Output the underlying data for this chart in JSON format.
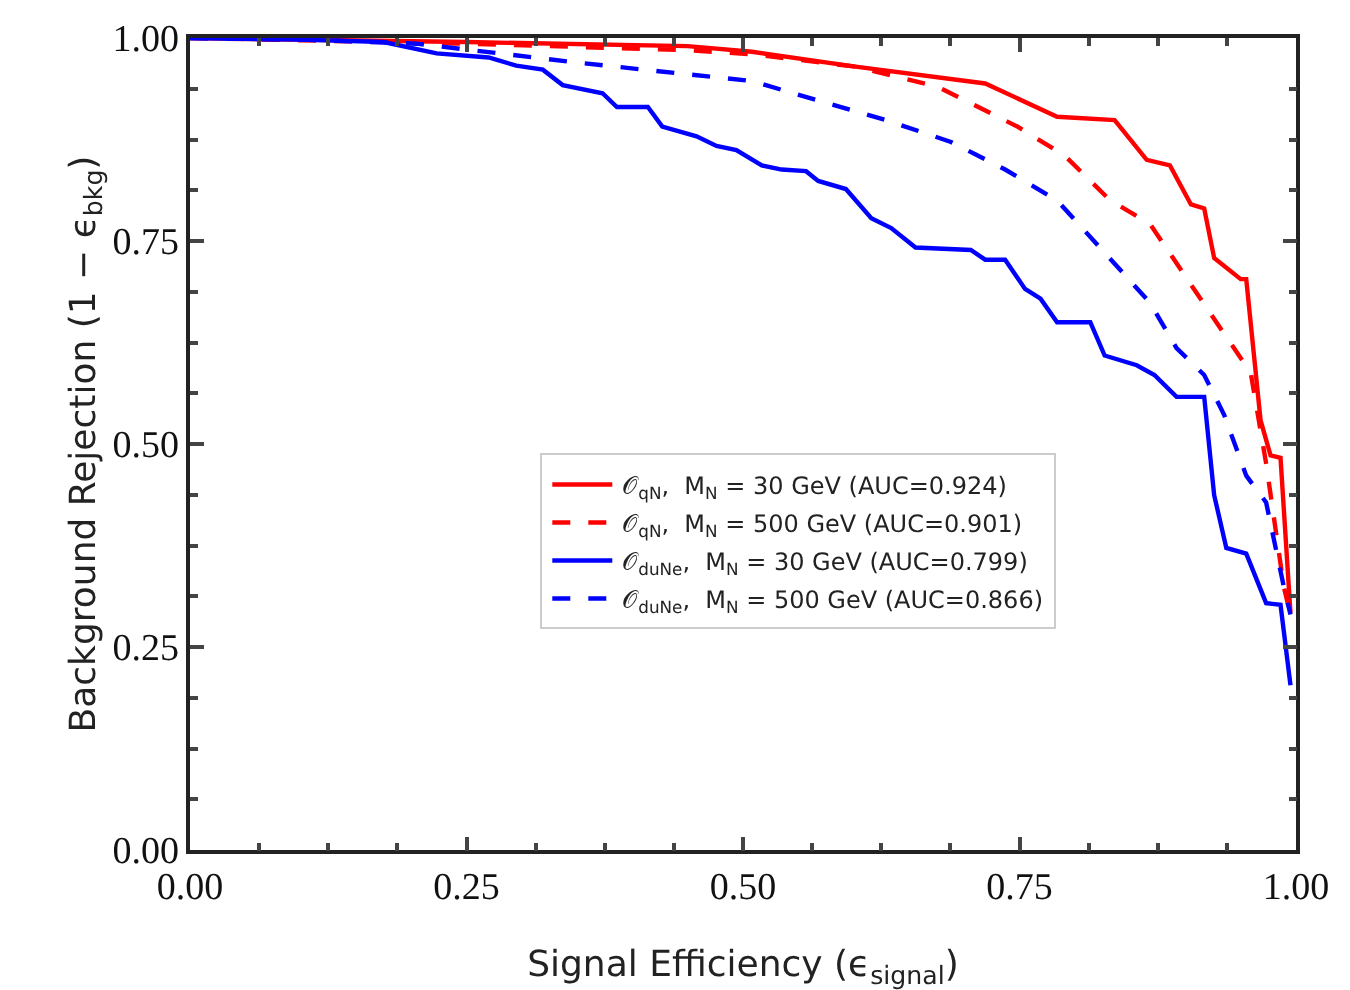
{
  "chart_data": {
    "type": "line",
    "xlabel": "Signal Efficiency (ϵ$_{signal}$)",
    "ylabel": "Background Rejection (1 − ϵ$_{bkg}$)",
    "xlim": [
      0,
      1
    ],
    "ylim": [
      0,
      1
    ],
    "xticks": [
      {
        "value": 0,
        "label": "0.00"
      },
      {
        "value": 0.25,
        "label": "0.25"
      },
      {
        "value": 0.5,
        "label": "0.50"
      },
      {
        "value": 0.75,
        "label": "0.75"
      },
      {
        "value": 1,
        "label": "1.00"
      }
    ],
    "yticks": [
      {
        "value": 0,
        "label": "0.00"
      },
      {
        "value": 0.25,
        "label": "0.25"
      },
      {
        "value": 0.5,
        "label": "0.50"
      },
      {
        "value": 0.75,
        "label": "0.75"
      },
      {
        "value": 1,
        "label": "1.00"
      }
    ],
    "grid": false,
    "legend": "center",
    "marker": "none",
    "series": [
      {
        "name": "𝒪$_{qN}$,  M$_{N}$ = 30 GeV (AUC=0.924)",
        "color": "#ff0000",
        "line_style": "solid",
        "x": [
          0,
          0.25,
          0.45,
          0.508,
          0.6,
          0.719,
          0.784,
          0.836,
          0.865,
          0.886,
          0.905,
          0.917,
          0.926,
          0.95,
          0.955,
          0.968,
          0.977,
          0.986,
          0.995
        ],
        "values": [
          1,
          0.995,
          0.99,
          0.983,
          0.965,
          0.944,
          0.903,
          0.899,
          0.85,
          0.843,
          0.795,
          0.79,
          0.729,
          0.703,
          0.703,
          0.529,
          0.486,
          0.483,
          0.292
        ]
      },
      {
        "name": "𝒪$_{qN}$,  M$_{N}$ = 500 GeV (AUC=0.901)",
        "color": "#ff0000",
        "line_style": "dashed",
        "x": [
          0,
          0.25,
          0.45,
          0.508,
          0.6,
          0.676,
          0.748,
          0.791,
          0.832,
          0.868,
          0.922,
          0.959,
          0.973,
          0.989,
          0.995
        ],
        "values": [
          1,
          0.993,
          0.985,
          0.98,
          0.965,
          0.94,
          0.891,
          0.855,
          0.8,
          0.771,
          0.662,
          0.588,
          0.476,
          0.324,
          0.29
        ]
      },
      {
        "name": "𝒪$_{duNe}$,  M$_{N}$ = 30 GeV (AUC=0.799)",
        "color": "#0000ff",
        "line_style": "solid",
        "x": [
          0,
          0.1,
          0.175,
          0.223,
          0.27,
          0.295,
          0.319,
          0.337,
          0.373,
          0.386,
          0.414,
          0.427,
          0.458,
          0.476,
          0.494,
          0.517,
          0.535,
          0.557,
          0.568,
          0.593,
          0.616,
          0.634,
          0.656,
          0.706,
          0.719,
          0.737,
          0.755,
          0.769,
          0.784,
          0.814,
          0.827,
          0.856,
          0.872,
          0.892,
          0.917,
          0.926,
          0.937,
          0.955,
          0.973,
          0.986,
          0.995
        ],
        "values": [
          1,
          0.998,
          0.995,
          0.981,
          0.976,
          0.966,
          0.961,
          0.942,
          0.932,
          0.915,
          0.915,
          0.891,
          0.879,
          0.867,
          0.862,
          0.843,
          0.838,
          0.836,
          0.824,
          0.814,
          0.778,
          0.766,
          0.742,
          0.739,
          0.727,
          0.727,
          0.691,
          0.679,
          0.65,
          0.65,
          0.609,
          0.597,
          0.585,
          0.558,
          0.558,
          0.437,
          0.372,
          0.365,
          0.304,
          0.302,
          0.203
        ]
      },
      {
        "name": "𝒪$_{duNe}$,  M$_{N}$ = 500 GeV (AUC=0.866)",
        "color": "#0000ff",
        "line_style": "dashed",
        "x": [
          0,
          0.1,
          0.205,
          0.355,
          0.508,
          0.568,
          0.629,
          0.688,
          0.737,
          0.784,
          0.82,
          0.868,
          0.892,
          0.917,
          0.935,
          0.955,
          0.973,
          0.989,
          0.995
        ],
        "values": [
          1,
          0.998,
          0.993,
          0.969,
          0.947,
          0.923,
          0.899,
          0.872,
          0.838,
          0.8,
          0.746,
          0.674,
          0.618,
          0.585,
          0.536,
          0.461,
          0.428,
          0.324,
          0.29
        ]
      }
    ]
  }
}
